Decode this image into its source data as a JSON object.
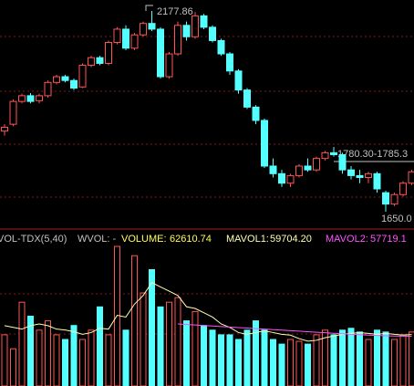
{
  "chart_data": [
    {
      "type": "candlestick",
      "open": [
        1862,
        1880,
        1940,
        1955,
        1942,
        1955,
        1990,
        2005,
        1995,
        1978,
        2035,
        2055,
        2040,
        2095,
        2130,
        2080,
        2115,
        2145,
        2130,
        2005,
        2065,
        2140,
        2110,
        2165,
        2135,
        2100,
        2065,
        2020,
        1970,
        1925,
        1890,
        1770,
        1750,
        1725,
        1745,
        1770,
        1760,
        1790,
        1805,
        1800,
        1760,
        1745,
        1740,
        1750,
        1700,
        1670,
        1695,
        1725
      ],
      "high": [
        1880,
        1945,
        1960,
        1962,
        1960,
        1995,
        2010,
        2010,
        2000,
        2040,
        2060,
        2060,
        2100,
        2135,
        2140,
        2120,
        2150,
        2177.86,
        2135,
        2070,
        2150,
        2150,
        2175,
        2170,
        2140,
        2105,
        2070,
        2025,
        1975,
        1930,
        1895,
        1790,
        1760,
        1750,
        1775,
        1790,
        1795,
        1810,
        1820,
        1805,
        1770,
        1760,
        1755,
        1755,
        1705,
        1700,
        1730,
        1760
      ],
      "low": [
        1850,
        1875,
        1935,
        1935,
        1935,
        1950,
        1985,
        1990,
        1970,
        1975,
        2030,
        2035,
        2035,
        2090,
        2075,
        2075,
        2110,
        2125,
        2000,
        2000,
        2060,
        2100,
        2105,
        2130,
        2095,
        2060,
        2010,
        1960,
        1920,
        1880,
        1765,
        1740,
        1715,
        1715,
        1740,
        1755,
        1755,
        1785,
        1795,
        1750,
        1735,
        1725,
        1725,
        1700,
        1650,
        1665,
        1690,
        1720
      ],
      "close": [
        1872,
        1940,
        1955,
        1940,
        1955,
        1990,
        2005,
        1995,
        1975,
        2035,
        2055,
        2040,
        2095,
        2130,
        2080,
        2115,
        2145,
        2130,
        2005,
        2065,
        2140,
        2110,
        2165,
        2135,
        2100,
        2065,
        2020,
        1970,
        1925,
        1890,
        1770,
        1750,
        1725,
        1745,
        1770,
        1760,
        1790,
        1805,
        1800,
        1760,
        1745,
        1740,
        1750,
        1710,
        1670,
        1695,
        1725,
        1755
      ],
      "up_color": "#ff5454",
      "down_color": "#54ffff",
      "annotations": [
        "2177.86",
        "1780.30-1785.3",
        "1650.0"
      ]
    },
    {
      "type": "bar",
      "indicator": "VOL-TDX(5,40)",
      "extra": "WVOL: -",
      "series": [
        {
          "name": "VOLUME:",
          "color": "#ffff54",
          "values": [
            59400,
            43200,
            97200,
            81000,
            64800,
            75600,
            59400,
            54000,
            70200,
            54000,
            64800,
            91800,
            59400,
            162000,
            64800,
            151200,
            108000,
            135000,
            91800,
            97200,
            102600,
            75600,
            86400,
            70200,
            64800,
            59400,
            59400,
            54000,
            64800,
            75600,
            64800,
            54000,
            48600,
            54000,
            51840,
            48600,
            59400,
            64800,
            59400,
            64800,
            66960,
            62640,
            54000,
            64800,
            62640,
            54000,
            59400,
            62610.74
          ]
        },
        {
          "name": "MAVOL1:",
          "color": "#ffffb0",
          "values": [
            70000,
            68000,
            66000,
            70000,
            72000,
            70000,
            66000,
            65000,
            63000,
            60000,
            62000,
            67000,
            66000,
            82000,
            80000,
            95000,
            105000,
            120000,
            115000,
            110000,
            105000,
            92000,
            90000,
            85000,
            80000,
            72000,
            68000,
            62000,
            60000,
            62000,
            64000,
            62000,
            60000,
            59000,
            55000,
            52000,
            53000,
            56000,
            58000,
            60000,
            61000,
            62000,
            61000,
            60000,
            61000,
            60000,
            59000,
            59704.2
          ],
          "value_labels": [
            null,
            null,
            null,
            null,
            null,
            null,
            null,
            null,
            null,
            null,
            null,
            null,
            null,
            null,
            null,
            null,
            null,
            null,
            null,
            null,
            null,
            null,
            null,
            null,
            null,
            null,
            null,
            null,
            null,
            null,
            null,
            null,
            null,
            null,
            null,
            null,
            null,
            null,
            null,
            null,
            null,
            null,
            null,
            null,
            null,
            null,
            null,
            "59704.20"
          ]
        },
        {
          "name": "MAVOL2:",
          "color": "#ff54ff",
          "values": [
            null,
            null,
            null,
            null,
            null,
            null,
            null,
            null,
            null,
            null,
            null,
            null,
            null,
            null,
            null,
            null,
            null,
            null,
            null,
            null,
            72000,
            71400,
            70800,
            70200,
            69600,
            69000,
            68400,
            67800,
            67200,
            66600,
            66000,
            65400,
            64800,
            64200,
            63600,
            63000,
            62400,
            61800,
            61200,
            60600,
            60000,
            59500,
            59000,
            58600,
            58300,
            58000,
            57800,
            57719.1
          ]
        }
      ]
    }
  ]
}
